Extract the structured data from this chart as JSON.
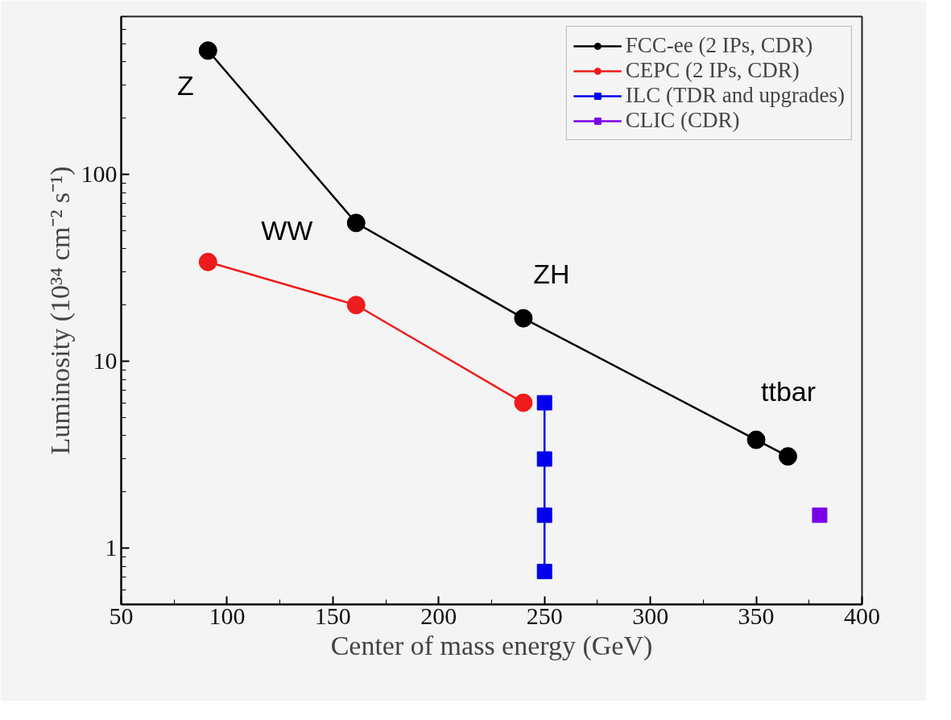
{
  "chart_data": {
    "type": "line",
    "xlabel": "Center of mass energy (GeV)",
    "ylabel": "Luminosity (10³⁴ cm⁻² s⁻¹)",
    "log": "y",
    "xlim": [
      50,
      400
    ],
    "xticks": [
      50,
      100,
      150,
      200,
      250,
      300,
      350,
      400
    ],
    "ylim": [
      0.5,
      700
    ],
    "yticks": [
      1,
      10,
      100
    ],
    "grid": false,
    "legend": "top right",
    "line_style": "solid",
    "series": [
      {
        "name": "FCC-ee (2 IPs, CDR)",
        "color": "#000000",
        "marker": "circle",
        "x": [
          91,
          161,
          240,
          350,
          365
        ],
        "values": [
          460,
          55,
          17,
          3.8,
          3.1
        ]
      },
      {
        "name": "CEPC (2 IPs, CDR)",
        "color": "#ee1c1c",
        "marker": "circle",
        "x": [
          91,
          161,
          240
        ],
        "values": [
          34,
          20,
          6
        ]
      },
      {
        "name": "ILC (TDR and upgrades)",
        "color": "#0000ee",
        "marker": "square",
        "x": [
          250,
          250,
          250,
          250
        ],
        "values": [
          6,
          3,
          1.5,
          0.75
        ]
      },
      {
        "name": "CLIC (CDR)",
        "color": "#7b00e8",
        "marker": "square",
        "x": [
          380
        ],
        "values": [
          1.5
        ]
      }
    ],
    "annotations": [
      {
        "text": "Z",
        "x": 91,
        "y": 460
      },
      {
        "text": "WW",
        "x": 161,
        "y": 55
      },
      {
        "text": "ZH",
        "x": 240,
        "y": 17
      },
      {
        "text": "ttbar",
        "x": 350,
        "y": 3.8
      }
    ]
  }
}
